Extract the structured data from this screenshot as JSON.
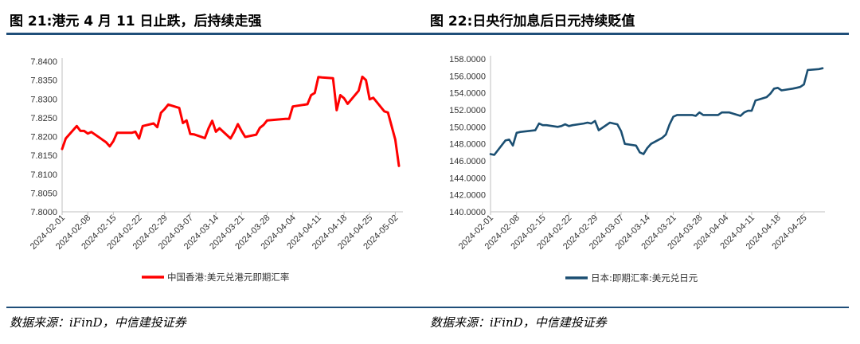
{
  "charts": [
    {
      "title": "图 21:港元 4 月 11 日止跌，后持续走强",
      "source": "数据来源：iFinD，中信建投证券",
      "chart_data": {
        "type": "line",
        "y_ticks": [
          "7.8400",
          "7.8350",
          "7.8300",
          "7.8250",
          "7.8200",
          "7.8150",
          "7.8100",
          "7.8050",
          "7.8000"
        ],
        "ylim": [
          7.8,
          7.84
        ],
        "x_ticks": [
          "2024-02-01",
          "2024-02-08",
          "2024-02-15",
          "2024-02-22",
          "2024-02-29",
          "2024-03-07",
          "2024-03-14",
          "2024-03-21",
          "2024-03-28",
          "2024-04-04",
          "2024-04-11",
          "2024-04-18",
          "2024-04-25",
          "2024-05-02"
        ],
        "series": [
          {
            "name": "中国香港:美元兑港元即期汇率",
            "color": "#ff0000",
            "points": [
              [
                "2024-02-01",
                7.8167
              ],
              [
                "2024-02-02",
                7.8195
              ],
              [
                "2024-02-05",
                7.8228
              ],
              [
                "2024-02-06",
                7.8215
              ],
              [
                "2024-02-07",
                7.8215
              ],
              [
                "2024-02-08",
                7.8208
              ],
              [
                "2024-02-09",
                7.8212
              ],
              [
                "2024-02-13",
                7.8185
              ],
              [
                "2024-02-14",
                7.8174
              ],
              [
                "2024-02-15",
                7.8188
              ],
              [
                "2024-02-16",
                7.821
              ],
              [
                "2024-02-19",
                7.821
              ],
              [
                "2024-02-20",
                7.821
              ],
              [
                "2024-02-21",
                7.8213
              ],
              [
                "2024-02-22",
                7.8195
              ],
              [
                "2024-02-23",
                7.8228
              ],
              [
                "2024-02-26",
                7.8235
              ],
              [
                "2024-02-27",
                7.8225
              ],
              [
                "2024-02-28",
                7.8263
              ],
              [
                "2024-02-29",
                7.8273
              ],
              [
                "2024-03-01",
                7.8285
              ],
              [
                "2024-03-04",
                7.8276
              ],
              [
                "2024-03-05",
                7.8236
              ],
              [
                "2024-03-06",
                7.8243
              ],
              [
                "2024-03-07",
                7.8207
              ],
              [
                "2024-03-08",
                7.8206
              ],
              [
                "2024-03-11",
                7.8196
              ],
              [
                "2024-03-12",
                7.8222
              ],
              [
                "2024-03-13",
                7.8242
              ],
              [
                "2024-03-14",
                7.8213
              ],
              [
                "2024-03-15",
                7.8222
              ],
              [
                "2024-03-18",
                7.8195
              ],
              [
                "2024-03-19",
                7.8212
              ],
              [
                "2024-03-20",
                7.8233
              ],
              [
                "2024-03-21",
                7.8215
              ],
              [
                "2024-03-22",
                7.8199
              ],
              [
                "2024-03-25",
                7.8205
              ],
              [
                "2024-03-26",
                7.8223
              ],
              [
                "2024-03-27",
                7.8231
              ],
              [
                "2024-03-28",
                7.8243
              ],
              [
                "2024-04-02",
                7.8247
              ],
              [
                "2024-04-03",
                7.8247
              ],
              [
                "2024-04-04",
                7.828
              ],
              [
                "2024-04-08",
                7.8286
              ],
              [
                "2024-04-09",
                7.831
              ],
              [
                "2024-04-10",
                7.8316
              ],
              [
                "2024-04-11",
                7.8358
              ],
              [
                "2024-04-12",
                7.8357
              ],
              [
                "2024-04-15",
                7.8355
              ],
              [
                "2024-04-16",
                7.827
              ],
              [
                "2024-04-17",
                7.831
              ],
              [
                "2024-04-18",
                7.8302
              ],
              [
                "2024-04-19",
                7.8287
              ],
              [
                "2024-04-22",
                7.8322
              ],
              [
                "2024-04-23",
                7.8359
              ],
              [
                "2024-04-24",
                7.835
              ],
              [
                "2024-04-25",
                7.8299
              ],
              [
                "2024-04-26",
                7.8303
              ],
              [
                "2024-04-29",
                7.8267
              ],
              [
                "2024-04-30",
                7.8264
              ],
              [
                "2024-05-02",
                7.8192
              ],
              [
                "2024-05-03",
                7.8122
              ]
            ]
          }
        ],
        "grid": false,
        "legend": "bottom"
      }
    },
    {
      "title": "图 22:日央行加息后日元持续贬值",
      "source": "数据来源：iFinD，中信建投证券",
      "chart_data": {
        "type": "line",
        "y_ticks": [
          "158.0000",
          "156.0000",
          "154.0000",
          "152.0000",
          "150.0000",
          "148.0000",
          "146.0000",
          "144.0000",
          "142.0000",
          "140.0000"
        ],
        "ylim": [
          140,
          158
        ],
        "x_ticks": [
          "2024-02-01",
          "2024-02-08",
          "2024-02-15",
          "2024-02-22",
          "2024-02-29",
          "2024-03-07",
          "2024-03-14",
          "2024-03-21",
          "2024-03-28",
          "2024-04-04",
          "2024-04-11",
          "2024-04-18",
          "2024-04-25"
        ],
        "series": [
          {
            "name": "日本:即期汇率:美元兑日元",
            "color": "#1b4f72",
            "points": [
              [
                "2024-02-01",
                146.8
              ],
              [
                "2024-02-02",
                146.7
              ],
              [
                "2024-02-05",
                148.4
              ],
              [
                "2024-02-06",
                148.5
              ],
              [
                "2024-02-07",
                147.8
              ],
              [
                "2024-02-08",
                149.3
              ],
              [
                "2024-02-09",
                149.4
              ],
              [
                "2024-02-13",
                149.6
              ],
              [
                "2024-02-14",
                150.4
              ],
              [
                "2024-02-15",
                150.2
              ],
              [
                "2024-02-16",
                150.2
              ],
              [
                "2024-02-19",
                150.0
              ],
              [
                "2024-02-20",
                150.1
              ],
              [
                "2024-02-21",
                150.3
              ],
              [
                "2024-02-22",
                150.1
              ],
              [
                "2024-02-23",
                150.2
              ],
              [
                "2024-02-26",
                150.4
              ],
              [
                "2024-02-27",
                150.5
              ],
              [
                "2024-02-28",
                150.4
              ],
              [
                "2024-02-29",
                150.7
              ],
              [
                "2024-03-01",
                149.6
              ],
              [
                "2024-03-04",
                150.5
              ],
              [
                "2024-03-05",
                150.4
              ],
              [
                "2024-03-06",
                150.3
              ],
              [
                "2024-03-07",
                149.5
              ],
              [
                "2024-03-08",
                148.0
              ],
              [
                "2024-03-11",
                147.8
              ],
              [
                "2024-03-12",
                147.0
              ],
              [
                "2024-03-13",
                146.8
              ],
              [
                "2024-03-14",
                147.5
              ],
              [
                "2024-03-15",
                148.0
              ],
              [
                "2024-03-18",
                148.7
              ],
              [
                "2024-03-19",
                149.1
              ],
              [
                "2024-03-20",
                150.3
              ],
              [
                "2024-03-21",
                151.2
              ],
              [
                "2024-03-22",
                151.4
              ],
              [
                "2024-03-25",
                151.4
              ],
              [
                "2024-03-26",
                151.4
              ],
              [
                "2024-03-27",
                151.3
              ],
              [
                "2024-03-28",
                151.7
              ],
              [
                "2024-03-29",
                151.4
              ],
              [
                "2024-04-01",
                151.4
              ],
              [
                "2024-04-02",
                151.4
              ],
              [
                "2024-04-03",
                151.7
              ],
              [
                "2024-04-05",
                151.7
              ],
              [
                "2024-04-08",
                151.3
              ],
              [
                "2024-04-09",
                151.7
              ],
              [
                "2024-04-10",
                151.9
              ],
              [
                "2024-04-11",
                151.9
              ],
              [
                "2024-04-12",
                153.1
              ],
              [
                "2024-04-15",
                153.5
              ],
              [
                "2024-04-16",
                153.9
              ],
              [
                "2024-04-17",
                154.5
              ],
              [
                "2024-04-18",
                154.6
              ],
              [
                "2024-04-19",
                154.3
              ],
              [
                "2024-04-22",
                154.5
              ],
              [
                "2024-04-23",
                154.6
              ],
              [
                "2024-04-24",
                154.7
              ],
              [
                "2024-04-25",
                155.0
              ],
              [
                "2024-04-26",
                156.7
              ],
              [
                "2024-04-29",
                156.8
              ],
              [
                "2024-04-30",
                156.9
              ]
            ]
          }
        ],
        "grid": false,
        "legend": "bottom"
      }
    }
  ]
}
